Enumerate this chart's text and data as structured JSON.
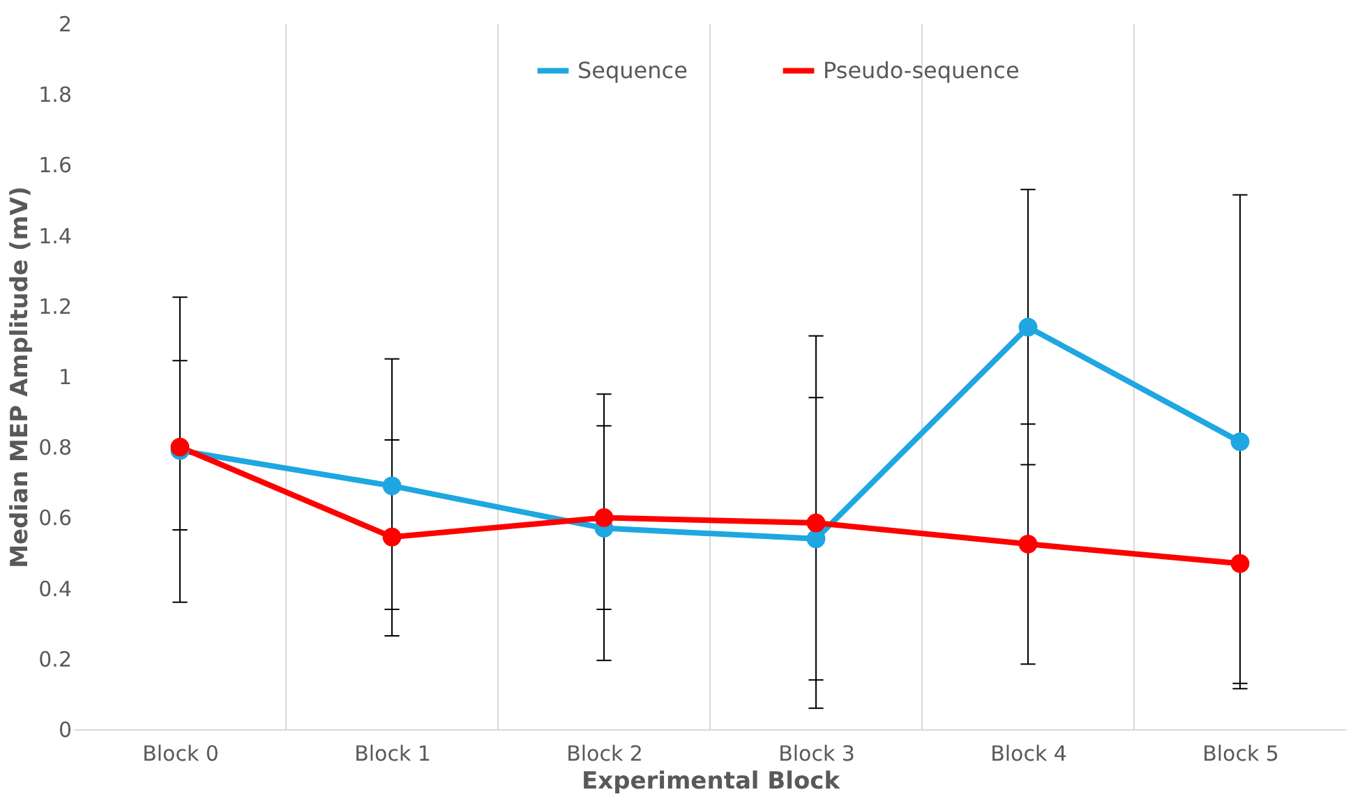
{
  "chart_data": {
    "type": "line",
    "xlabel": "Experimental Block",
    "ylabel": "Median MEP Amplitude (mV)",
    "categories": [
      "Block 0",
      "Block 1",
      "Block 2",
      "Block 3",
      "Block 4",
      "Block 5"
    ],
    "series": [
      {
        "name": "Sequence",
        "color": "#1ea7e1",
        "values": [
          0.79,
          0.69,
          0.57,
          0.54,
          1.14,
          0.815
        ],
        "errors": [
          [
            0.36,
            1.225
          ],
          [
            0.34,
            1.05
          ],
          [
            0.195,
            0.95
          ],
          [
            0.14,
            0.94
          ],
          [
            0.75,
            1.53
          ],
          [
            0.115,
            1.515
          ]
        ]
      },
      {
        "name": "Pseudo-sequence",
        "color": "#ff0000",
        "values": [
          0.8,
          0.545,
          0.6,
          0.585,
          0.525,
          0.47
        ],
        "errors": [
          [
            0.565,
            1.045
          ],
          [
            0.265,
            0.82
          ],
          [
            0.34,
            0.86
          ],
          [
            0.06,
            1.115
          ],
          [
            0.185,
            0.865
          ],
          [
            0.13,
            0.47
          ]
        ]
      }
    ],
    "ylim": [
      0,
      2
    ],
    "yticks": [
      0,
      0.2,
      0.4,
      0.6,
      0.8,
      1,
      1.2,
      1.4,
      1.6,
      1.8,
      2
    ],
    "grid": "x",
    "legend": "top",
    "marker": "circle",
    "line_style": "solid"
  }
}
